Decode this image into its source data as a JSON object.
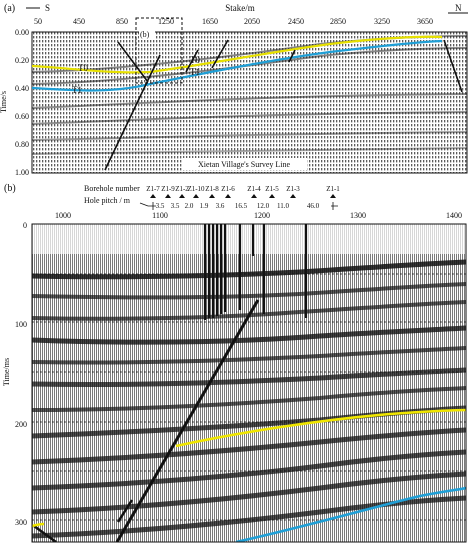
{
  "panel_a": {
    "label": "(a)",
    "top_axis_title": "Stake/m",
    "left_dir": "S",
    "right_dir": "N",
    "x_ticks": [
      "50",
      "450",
      "850",
      "1250",
      "1650",
      "2050",
      "2450",
      "2850",
      "3250",
      "3650"
    ],
    "y_axis_title": "Time/s",
    "y_ticks": [
      "0.00",
      "0.20",
      "0.40",
      "0.60",
      "0.80",
      "1.00"
    ],
    "inset_label": "(b)",
    "horizon_labels": [
      "T0",
      "T1",
      "T0",
      "T1"
    ],
    "survey_caption": "Xietan Village's Survey Line",
    "horizon_colors": {
      "T0": "#e6e000",
      "T1": "#1f9fd6"
    }
  },
  "panel_b": {
    "label": "(b)",
    "borehole_title": "Borehole number",
    "boreholes": [
      "Z1-7",
      "Z1-9",
      "Z1-2",
      "Z1-10",
      "Z1-8",
      "Z1-6",
      "Z1-4",
      "Z1-5",
      "Z1-3",
      "Z1-1"
    ],
    "pitch_title": "Hole pitch / m",
    "pitches": [
      "3.5",
      "3.5",
      "2.0",
      "1.9",
      "3.6",
      "16.5",
      "12.0",
      "11.0",
      "46.0"
    ],
    "x_ticks": [
      "1000",
      "1100",
      "1200",
      "1300",
      "1400"
    ],
    "y_axis_title": "Time/ms",
    "y_ticks": [
      "0",
      "100",
      "200",
      "300"
    ],
    "horizon_colors": {
      "upper": "#f0e600",
      "lower": "#1f9fd6"
    }
  }
}
